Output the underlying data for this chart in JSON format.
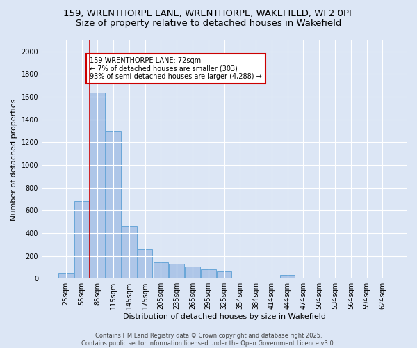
{
  "title_line1": "159, WRENTHORPE LANE, WRENTHORPE, WAKEFIELD, WF2 0PF",
  "title_line2": "Size of property relative to detached houses in Wakefield",
  "xlabel": "Distribution of detached houses by size in Wakefield",
  "ylabel": "Number of detached properties",
  "categories": [
    "25sqm",
    "55sqm",
    "85sqm",
    "115sqm",
    "145sqm",
    "175sqm",
    "205sqm",
    "235sqm",
    "265sqm",
    "295sqm",
    "325sqm",
    "354sqm",
    "384sqm",
    "414sqm",
    "444sqm",
    "474sqm",
    "504sqm",
    "534sqm",
    "564sqm",
    "594sqm",
    "624sqm"
  ],
  "values": [
    50,
    680,
    1640,
    1300,
    460,
    260,
    145,
    130,
    105,
    80,
    60,
    0,
    0,
    0,
    30,
    0,
    0,
    0,
    0,
    0,
    0
  ],
  "bar_color": "#aec6e8",
  "bar_edge_color": "#5a9fd4",
  "vline_x_index": 1.5,
  "vline_color": "#cc0000",
  "annotation_text": "159 WRENTHORPE LANE: 72sqm\n← 7% of detached houses are smaller (303)\n93% of semi-detached houses are larger (4,288) →",
  "annotation_box_color": "#cc0000",
  "annotation_text_color": "#000000",
  "ylim": [
    0,
    2100
  ],
  "yticks": [
    0,
    200,
    400,
    600,
    800,
    1000,
    1200,
    1400,
    1600,
    1800,
    2000
  ],
  "bg_color": "#dce6f5",
  "plot_bg_color": "#dce6f5",
  "footer_text": "Contains HM Land Registry data © Crown copyright and database right 2025.\nContains public sector information licensed under the Open Government Licence v3.0.",
  "title_fontsize": 9.5,
  "axis_label_fontsize": 8,
  "tick_fontsize": 7,
  "footer_fontsize": 6,
  "annotation_fontsize": 7,
  "ylabel_fontsize": 8
}
